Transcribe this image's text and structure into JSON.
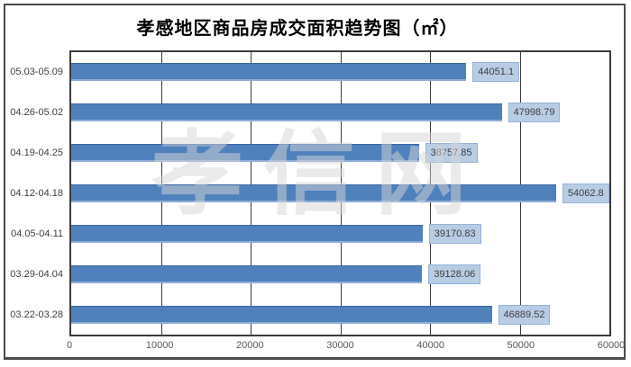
{
  "title": "孝感地区商品房成交面积趋势图（㎡）",
  "watermark": {
    "text": "孝信网"
  },
  "chart_data": {
    "type": "bar",
    "orientation": "horizontal",
    "title": "孝感地区商品房成交面积趋势图（㎡）",
    "categories": [
      "05.03-05.09",
      "04.26-05.02",
      "04.19-04.25",
      "04.12-04.18",
      "04.05-04.11",
      "03.29-04.04",
      "03.22-03.28"
    ],
    "values": [
      44051.1,
      47998.79,
      38757.85,
      54062.8,
      39170.83,
      39128.06,
      46889.52
    ],
    "value_labels": [
      "44051.1",
      "47998.79",
      "38757.85",
      "54062.8",
      "39170.83",
      "39128.06",
      "46889.52"
    ],
    "xlabel": "",
    "ylabel": "",
    "xlim": [
      0,
      60000
    ],
    "x_tick_labels": [
      "0",
      "10000",
      "20000",
      "30000",
      "40000",
      "50000",
      "60000"
    ],
    "grid": "vertical-only",
    "legend": "none",
    "colors": {
      "bar": "#4f81bd",
      "bar_top_edge": "#3a67a3",
      "bar_bottom_edge": "#8fadd6",
      "label_box_bg": "#b8cce4",
      "label_box_border": "#95b3d7",
      "label_text": "#3f3f3f",
      "gridline": "#3c3c3c",
      "plot_border": "#3c3c3c",
      "frame_border": "#4b4b4b",
      "tick_text": "#595959",
      "category_text": "#3f3f3f",
      "title_text": "#000000"
    }
  }
}
